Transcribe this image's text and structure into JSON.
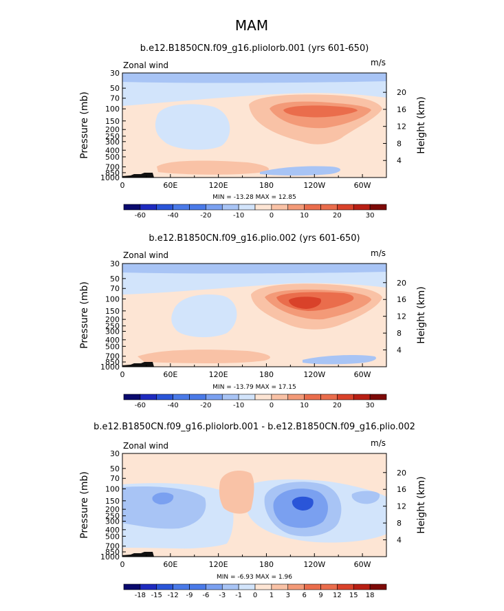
{
  "figure": {
    "title": "MAM"
  },
  "colors": {
    "seq": [
      "#0a0a6e",
      "#1e2bbf",
      "#2a55d8",
      "#4a7ae8",
      "#7aa0f0",
      "#a8c4f5",
      "#d2e4fb",
      "#fde5d4",
      "#f9c2a6",
      "#f39a78",
      "#ea6d4c",
      "#d9422a",
      "#b81f14",
      "#7d0a08"
    ]
  },
  "chart_data": [
    {
      "type": "heatmap",
      "title": "b.e12.B1850CN.f09_g16.pliolorb.001 (yrs 601-650)",
      "left_label": "Zonal wind",
      "right_label": "m/s",
      "xlabel": "",
      "ylabel": "Pressure (mb)",
      "y2label": "Height (km)",
      "x_ticks": [
        "0",
        "60E",
        "120E",
        "180",
        "120W",
        "60W"
      ],
      "y_ticks": [
        "30",
        "50",
        "70",
        "100",
        "150",
        "200",
        "250",
        "300",
        "400",
        "500",
        "700",
        "850",
        "1000"
      ],
      "y2_ticks": [
        "20",
        "16",
        "12",
        "8",
        "4"
      ],
      "stats": "MIN = -13.28  MAX = 12.85",
      "colorbar_labels": [
        "-60",
        "-40",
        "-20",
        "-10",
        "0",
        "10",
        "20",
        "30"
      ],
      "colorbar_levels": [
        -60,
        -50,
        -40,
        -30,
        -20,
        -15,
        -10,
        -5,
        0,
        5,
        10,
        15,
        20,
        25,
        30
      ]
    },
    {
      "type": "heatmap",
      "title": "b.e12.B1850CN.f09_g16.plio.002 (yrs 601-650)",
      "left_label": "Zonal wind",
      "right_label": "m/s",
      "xlabel": "",
      "ylabel": "Pressure (mb)",
      "y2label": "Height (km)",
      "x_ticks": [
        "0",
        "60E",
        "120E",
        "180",
        "120W",
        "60W"
      ],
      "y_ticks": [
        "30",
        "50",
        "70",
        "100",
        "150",
        "200",
        "250",
        "300",
        "400",
        "500",
        "700",
        "850",
        "1000"
      ],
      "y2_ticks": [
        "20",
        "16",
        "12",
        "8",
        "4"
      ],
      "stats": "MIN = -13.79  MAX = 17.15",
      "colorbar_labels": [
        "-60",
        "-40",
        "-20",
        "-10",
        "0",
        "10",
        "20",
        "30"
      ],
      "colorbar_levels": [
        -60,
        -50,
        -40,
        -30,
        -20,
        -15,
        -10,
        -5,
        0,
        5,
        10,
        15,
        20,
        25,
        30
      ]
    },
    {
      "type": "heatmap",
      "title": "b.e12.B1850CN.f09_g16.pliolorb.001 - b.e12.B1850CN.f09_g16.plio.002",
      "left_label": "Zonal wind",
      "right_label": "m/s",
      "xlabel": "",
      "ylabel": "Pressure (mb)",
      "y2label": "Height (km)",
      "x_ticks": [
        "0",
        "60E",
        "120E",
        "180",
        "120W",
        "60W"
      ],
      "y_ticks": [
        "30",
        "50",
        "70",
        "100",
        "150",
        "200",
        "250",
        "300",
        "400",
        "500",
        "700",
        "850",
        "1000"
      ],
      "y2_ticks": [
        "20",
        "16",
        "12",
        "8",
        "4"
      ],
      "stats": "MIN = -6.93  MAX = 1.96",
      "colorbar_labels": [
        "-18",
        "-15",
        "-12",
        "-9",
        "-6",
        "-3",
        "-1",
        "0",
        "1",
        "3",
        "6",
        "9",
        "12",
        "15",
        "18"
      ],
      "colorbar_levels": [
        -18,
        -15,
        -12,
        -9,
        -6,
        -3,
        -1,
        0,
        1,
        3,
        6,
        9,
        12,
        15,
        18
      ]
    }
  ]
}
